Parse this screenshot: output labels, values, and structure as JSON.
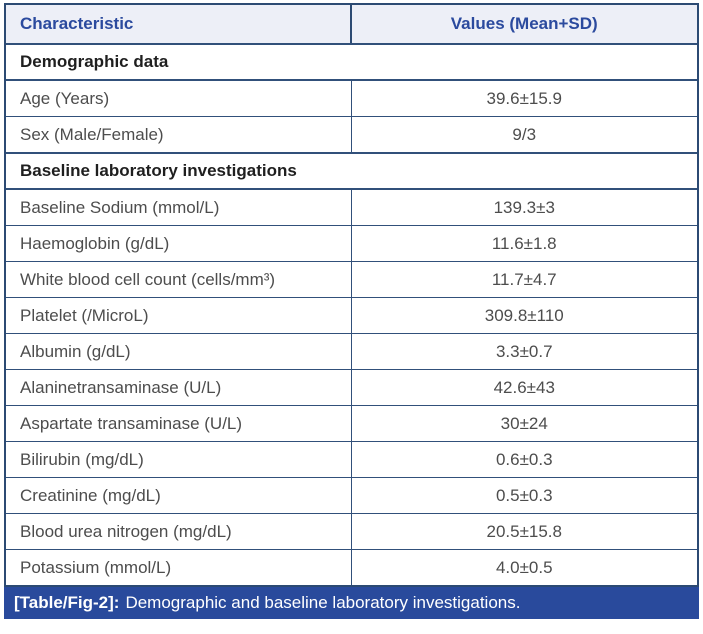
{
  "colors": {
    "header_bg": "#edeff7",
    "header_text": "#2b4a9e",
    "grid_line": "#31507a",
    "outer_border": "#2c4a73",
    "caption_bg": "#294a9c",
    "caption_text": "#ffffff",
    "body_text": "#4d4d4d",
    "section_text": "#1f1f1f"
  },
  "table": {
    "columns": [
      "Characteristic",
      "Values (Mean+SD)"
    ],
    "rows": [
      {
        "type": "section",
        "label": "Demographic data"
      },
      {
        "type": "data",
        "label": "Age (Years)",
        "value": "39.6±15.9"
      },
      {
        "type": "data",
        "label": "Sex (Male/Female)",
        "value": "9/3"
      },
      {
        "type": "section",
        "label": "Baseline laboratory investigations"
      },
      {
        "type": "data",
        "label": "Baseline Sodium (mmol/L)",
        "value": "139.3±3"
      },
      {
        "type": "data",
        "label": "Haemoglobin (g/dL)",
        "value": "11.6±1.8"
      },
      {
        "type": "data",
        "label": "White blood cell count (cells/mm³)",
        "value": "11.7±4.7"
      },
      {
        "type": "data",
        "label": "Platelet (/MicroL)",
        "value": "309.8±110"
      },
      {
        "type": "data",
        "label": "Albumin (g/dL)",
        "value": "3.3±0.7"
      },
      {
        "type": "data",
        "label": "Alaninetransaminase (U/L)",
        "value": "42.6±43"
      },
      {
        "type": "data",
        "label": "Aspartate transaminase (U/L)",
        "value": "30±24"
      },
      {
        "type": "data",
        "label": "Bilirubin (mg/dL)",
        "value": "0.6±0.3"
      },
      {
        "type": "data",
        "label": "Creatinine (mg/dL)",
        "value": "0.5±0.3"
      },
      {
        "type": "data",
        "label": "Blood urea nitrogen (mg/dL)",
        "value": "20.5±15.8"
      },
      {
        "type": "data",
        "label": "Potassium (mmol/L)",
        "value": "4.0±0.5"
      }
    ]
  },
  "caption": {
    "tag": "[Table/Fig-2]:",
    "text": "Demographic and baseline laboratory investigations."
  },
  "chart_data": {
    "type": "table",
    "title": "[Table/Fig-2]: Demographic and baseline laboratory investigations.",
    "columns": [
      "Characteristic",
      "Values (Mean+SD)"
    ],
    "sections": [
      {
        "name": "Demographic data",
        "rows": [
          [
            "Age (Years)",
            "39.6±15.9"
          ],
          [
            "Sex (Male/Female)",
            "9/3"
          ]
        ]
      },
      {
        "name": "Baseline laboratory investigations",
        "rows": [
          [
            "Baseline Sodium (mmol/L)",
            "139.3±3"
          ],
          [
            "Haemoglobin (g/dL)",
            "11.6±1.8"
          ],
          [
            "White blood cell count (cells/mm³)",
            "11.7±4.7"
          ],
          [
            "Platelet (/MicroL)",
            "309.8±110"
          ],
          [
            "Albumin (g/dL)",
            "3.3±0.7"
          ],
          [
            "Alaninetransaminase (U/L)",
            "42.6±43"
          ],
          [
            "Aspartate transaminase (U/L)",
            "30±24"
          ],
          [
            "Bilirubin (mg/dL)",
            "0.6±0.3"
          ],
          [
            "Creatinine (mg/dL)",
            "0.5±0.3"
          ],
          [
            "Blood urea nitrogen (mg/dL)",
            "20.5±15.8"
          ],
          [
            "Potassium (mmol/L)",
            "4.0±0.5"
          ]
        ]
      }
    ]
  }
}
